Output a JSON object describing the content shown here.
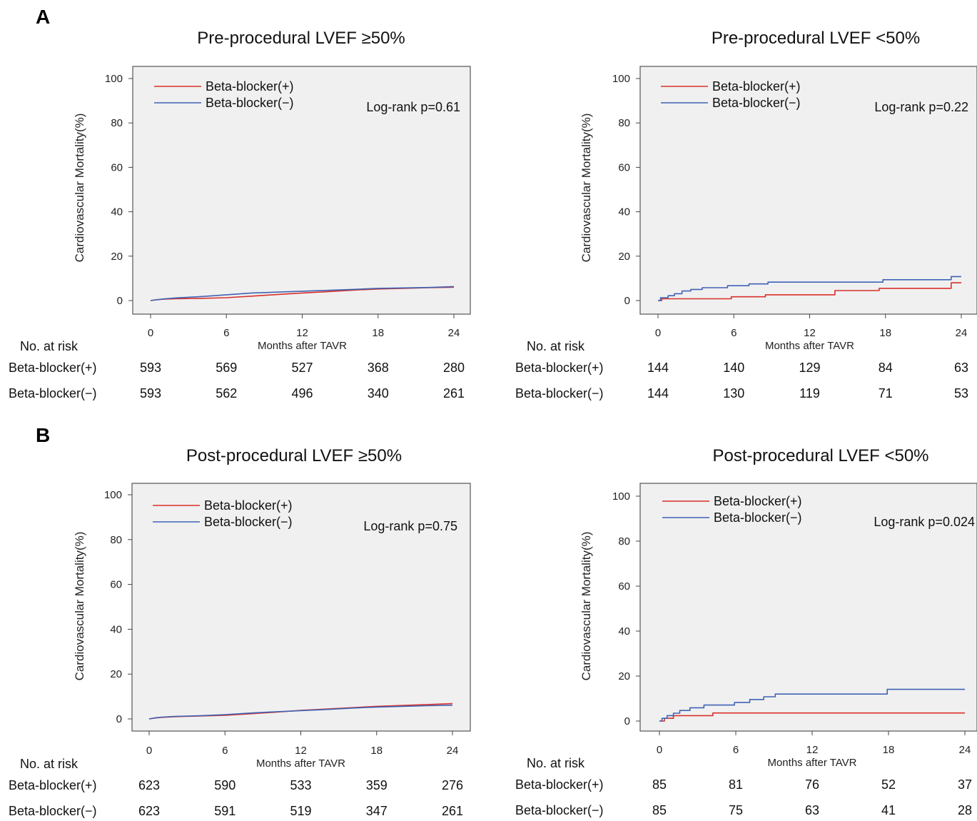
{
  "panel_labels": [
    "A",
    "B"
  ],
  "chart_data": [
    {
      "type": "line",
      "panel": "A",
      "title": "Pre-procedural LVEF ≥50%",
      "xlabel": "Months after TAVR",
      "ylabel": "Cardiovascular Mortality(%)",
      "xticks": [
        0,
        6,
        12,
        18,
        24
      ],
      "yticks": [
        0,
        20,
        40,
        60,
        80,
        100
      ],
      "xlim": [
        0,
        24
      ],
      "ylim": [
        0,
        100
      ],
      "grid": false,
      "legend_position": "top-left",
      "annotation": "Log-rank p=0.61",
      "series": [
        {
          "name": "Beta-blocker(+)",
          "color": "#d9302b",
          "x": [
            0,
            0.5,
            1,
            2,
            4,
            6,
            8,
            10,
            12,
            14,
            16,
            18,
            20,
            22,
            24
          ],
          "y": [
            0,
            0.4,
            0.6,
            0.8,
            1.0,
            1.3,
            2.0,
            2.7,
            3.4,
            4.0,
            4.7,
            5.2,
            5.5,
            5.8,
            6.0
          ]
        },
        {
          "name": "Beta-blocker(−)",
          "color": "#3f63b5",
          "x": [
            0,
            0.5,
            1,
            2,
            4,
            6,
            8,
            10,
            12,
            14,
            16,
            18,
            20,
            22,
            24
          ],
          "y": [
            0,
            0.4,
            0.7,
            1.2,
            1.8,
            2.6,
            3.4,
            3.8,
            4.2,
            4.6,
            5.0,
            5.5,
            5.7,
            5.9,
            6.3
          ]
        }
      ],
      "risk_table": {
        "header": "No. at risk",
        "rows": [
          {
            "label": "Beta-blocker(+)",
            "values": [
              "593",
              "569",
              "527",
              "368",
              "280"
            ]
          },
          {
            "label": "Beta-blocker(−)",
            "values": [
              "593",
              "562",
              "496",
              "340",
              "261"
            ]
          }
        ]
      }
    },
    {
      "type": "line",
      "panel": "A",
      "title": "Pre-procedural LVEF <50%",
      "xlabel": "Months after TAVR",
      "ylabel": "Cardiovascular Mortality(%)",
      "xticks": [
        0,
        6,
        12,
        18,
        24
      ],
      "yticks": [
        0,
        20,
        40,
        60,
        80,
        100
      ],
      "xlim": [
        0,
        24
      ],
      "ylim": [
        0,
        100
      ],
      "grid": false,
      "legend_position": "top-left",
      "annotation": "Log-rank p=0.22",
      "series": [
        {
          "name": "Beta-blocker(+)",
          "color": "#d9302b",
          "x": [
            0,
            0.3,
            0.3,
            5.8,
            5.8,
            8.5,
            8.5,
            14,
            14,
            17.5,
            17.5,
            23.2,
            23.2,
            24
          ],
          "y": [
            0,
            0,
            0.8,
            0.8,
            1.7,
            1.7,
            2.6,
            2.6,
            4.5,
            4.5,
            5.5,
            5.5,
            8.0,
            8.0
          ]
        },
        {
          "name": "Beta-blocker(−)",
          "color": "#3f63b5",
          "x": [
            0,
            0.2,
            0.2,
            0.8,
            0.8,
            1.3,
            1.3,
            1.9,
            1.9,
            2.6,
            2.6,
            3.5,
            3.5,
            5.5,
            5.5,
            7.2,
            7.2,
            8.7,
            8.7,
            17.8,
            17.8,
            23.2,
            23.2,
            24
          ],
          "y": [
            0,
            0,
            1.3,
            1.3,
            2.2,
            2.2,
            3.1,
            3.1,
            4.3,
            4.3,
            5.0,
            5.0,
            5.8,
            5.8,
            6.7,
            6.7,
            7.5,
            7.5,
            8.3,
            8.3,
            9.4,
            9.4,
            10.8,
            10.8
          ]
        }
      ],
      "risk_table": {
        "header": "No. at risk",
        "rows": [
          {
            "label": "Beta-blocker(+)",
            "values": [
              "144",
              "140",
              "129",
              "84",
              "63"
            ]
          },
          {
            "label": "Beta-blocker(−)",
            "values": [
              "144",
              "130",
              "119",
              "71",
              "53"
            ]
          }
        ]
      }
    },
    {
      "type": "line",
      "panel": "B",
      "title": "Post-procedural LVEF ≥50%",
      "xlabel": "Months after TAVR",
      "ylabel": "Cardiovascular Mortality(%)",
      "xticks": [
        0,
        6,
        12,
        18,
        24
      ],
      "yticks": [
        0,
        20,
        40,
        60,
        80,
        100
      ],
      "xlim": [
        0,
        24
      ],
      "ylim": [
        0,
        100
      ],
      "grid": false,
      "legend_position": "top-left",
      "annotation": "Log-rank p=0.75",
      "series": [
        {
          "name": "Beta-blocker(+)",
          "color": "#d9302b",
          "x": [
            0,
            0.5,
            1,
            2,
            4,
            6,
            8,
            10,
            12,
            14,
            16,
            18,
            20,
            22,
            24
          ],
          "y": [
            0,
            0.4,
            0.7,
            1.0,
            1.3,
            1.6,
            2.3,
            3.0,
            3.8,
            4.4,
            5.0,
            5.6,
            6.0,
            6.4,
            6.8
          ]
        },
        {
          "name": "Beta-blocker(−)",
          "color": "#3f63b5",
          "x": [
            0,
            0.5,
            1,
            2,
            4,
            6,
            8,
            10,
            12,
            14,
            16,
            18,
            20,
            22,
            24
          ],
          "y": [
            0,
            0.5,
            0.8,
            1.1,
            1.4,
            1.9,
            2.6,
            3.2,
            3.7,
            4.2,
            4.8,
            5.3,
            5.6,
            5.9,
            6.1
          ]
        }
      ],
      "risk_table": {
        "header": "No. at risk",
        "rows": [
          {
            "label": "Beta-blocker(+)",
            "values": [
              "623",
              "590",
              "533",
              "359",
              "276"
            ]
          },
          {
            "label": "Beta-blocker(−)",
            "values": [
              "623",
              "591",
              "519",
              "347",
              "261"
            ]
          }
        ]
      }
    },
    {
      "type": "line",
      "panel": "B",
      "title": "Post-procedural LVEF <50%",
      "xlabel": "Months after TAVR",
      "ylabel": "Cardiovascular Mortality(%)",
      "xticks": [
        0,
        6,
        12,
        18,
        24
      ],
      "yticks": [
        0,
        20,
        40,
        60,
        80,
        100
      ],
      "xlim": [
        0,
        24
      ],
      "ylim": [
        0,
        100
      ],
      "grid": false,
      "legend_position": "top-left",
      "annotation": "Log-rank p=0.024",
      "series": [
        {
          "name": "Beta-blocker(+)",
          "color": "#d9302b",
          "x": [
            0,
            0.4,
            0.4,
            1.1,
            1.1,
            4.2,
            4.2,
            24
          ],
          "y": [
            0,
            0,
            1.2,
            1.2,
            2.4,
            2.4,
            3.6,
            3.6
          ]
        },
        {
          "name": "Beta-blocker(−)",
          "color": "#3f63b5",
          "x": [
            0,
            0.2,
            0.2,
            0.6,
            0.6,
            1.1,
            1.1,
            1.6,
            1.6,
            2.4,
            2.4,
            3.5,
            3.5,
            5.9,
            5.9,
            7.1,
            7.1,
            8.2,
            8.2,
            9.1,
            9.1,
            17.9,
            17.9,
            24
          ],
          "y": [
            0,
            0,
            1.2,
            1.2,
            2.4,
            2.4,
            3.5,
            3.5,
            4.7,
            4.7,
            5.9,
            5.9,
            7.1,
            7.1,
            8.3,
            8.3,
            9.6,
            9.6,
            10.8,
            10.8,
            12.0,
            12.0,
            14.1,
            14.1
          ]
        }
      ],
      "risk_table": {
        "header": "No. at risk",
        "rows": [
          {
            "label": "Beta-blocker(+)",
            "values": [
              "85",
              "81",
              "76",
              "52",
              "37"
            ]
          },
          {
            "label": "Beta-blocker(−)",
            "values": [
              "85",
              "75",
              "63",
              "41",
              "28"
            ]
          }
        ]
      }
    }
  ]
}
